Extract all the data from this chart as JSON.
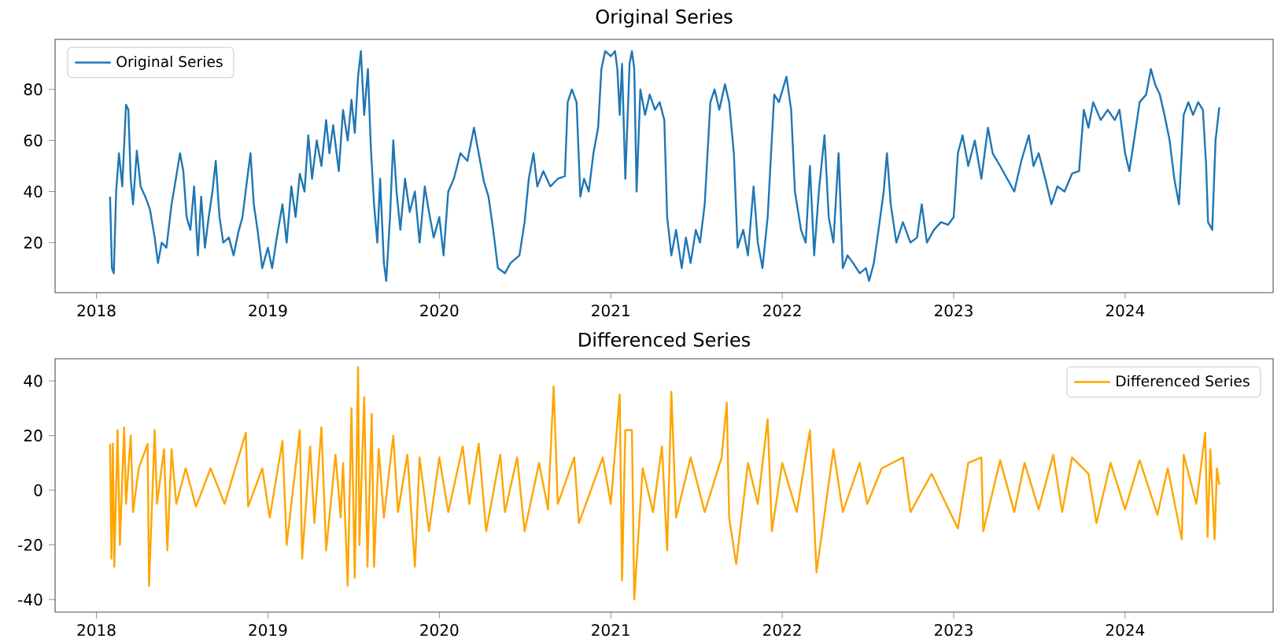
{
  "chart_data": [
    {
      "type": "line",
      "title": "Original Series",
      "legend": "top left",
      "x": [
        "2018-01-30",
        "2018-02-03",
        "2018-02-07",
        "2018-02-12",
        "2018-02-18",
        "2018-02-25",
        "2018-03-05",
        "2018-03-10",
        "2018-03-15",
        "2018-03-20",
        "2018-03-28",
        "2018-04-05",
        "2018-04-15",
        "2018-04-25",
        "2018-05-05",
        "2018-05-12",
        "2018-05-20",
        "2018-05-30",
        "2018-06-10",
        "2018-06-20",
        "2018-06-28",
        "2018-07-05",
        "2018-07-12",
        "2018-07-20",
        "2018-07-28",
        "2018-08-05",
        "2018-08-12",
        "2018-08-20",
        "2018-08-28",
        "2018-09-05",
        "2018-09-12",
        "2018-09-20",
        "2018-09-28",
        "2018-10-10",
        "2018-10-20",
        "2018-10-30",
        "2018-11-08",
        "2018-11-18",
        "2018-11-25",
        "2018-12-02",
        "2018-12-10",
        "2018-12-20",
        "2019-01-01",
        "2019-01-10",
        "2019-01-20",
        "2019-02-01",
        "2019-02-10",
        "2019-02-20",
        "2019-03-01",
        "2019-03-10",
        "2019-03-20",
        "2019-03-28",
        "2019-04-05",
        "2019-04-15",
        "2019-04-25",
        "2019-05-05",
        "2019-05-12",
        "2019-05-20",
        "2019-06-01",
        "2019-06-10",
        "2019-06-20",
        "2019-06-28",
        "2019-07-05",
        "2019-07-12",
        "2019-07-18",
        "2019-07-25",
        "2019-08-02",
        "2019-08-08",
        "2019-08-15",
        "2019-08-22",
        "2019-08-28",
        "2019-09-05",
        "2019-09-10",
        "2019-09-18",
        "2019-09-25",
        "2019-10-02",
        "2019-10-10",
        "2019-10-20",
        "2019-10-30",
        "2019-11-10",
        "2019-11-20",
        "2019-12-01",
        "2019-12-10",
        "2019-12-20",
        "2020-01-01",
        "2020-01-10",
        "2020-01-20",
        "2020-02-01",
        "2020-02-15",
        "2020-03-01",
        "2020-03-15",
        "2020-03-25",
        "2020-04-05",
        "2020-04-15",
        "2020-04-25",
        "2020-05-05",
        "2020-05-20",
        "2020-06-01",
        "2020-06-20",
        "2020-07-01",
        "2020-07-10",
        "2020-07-20",
        "2020-07-28",
        "2020-08-10",
        "2020-08-25",
        "2020-09-10",
        "2020-09-25",
        "2020-10-01",
        "2020-10-10",
        "2020-10-20",
        "2020-10-28",
        "2020-11-05",
        "2020-11-15",
        "2020-11-25",
        "2020-12-05",
        "2020-12-12",
        "2020-12-20",
        "2021-01-01",
        "2021-01-10",
        "2021-01-15",
        "2021-01-20",
        "2021-01-25",
        "2021-02-01",
        "2021-02-10",
        "2021-02-15",
        "2021-02-20",
        "2021-02-25",
        "2021-03-05",
        "2021-03-15",
        "2021-03-25",
        "2021-04-05",
        "2021-04-15",
        "2021-04-25",
        "2021-05-01",
        "2021-05-10",
        "2021-05-20",
        "2021-06-01",
        "2021-06-10",
        "2021-06-20",
        "2021-07-01",
        "2021-07-10",
        "2021-07-20",
        "2021-08-01",
        "2021-08-10",
        "2021-08-20",
        "2021-09-01",
        "2021-09-10",
        "2021-09-20",
        "2021-09-28",
        "2021-10-10",
        "2021-10-20",
        "2021-11-01",
        "2021-11-10",
        "2021-11-20",
        "2021-12-01",
        "2021-12-15",
        "2021-12-25",
        "2022-01-10",
        "2022-01-20",
        "2022-01-28",
        "2022-02-10",
        "2022-02-20",
        "2022-03-01",
        "2022-03-10",
        "2022-03-20",
        "2022-04-01",
        "2022-04-10",
        "2022-04-20",
        "2022-05-01",
        "2022-05-10",
        "2022-05-20",
        "2022-06-01",
        "2022-06-15",
        "2022-06-28",
        "2022-07-05",
        "2022-07-15",
        "2022-07-25",
        "2022-08-05",
        "2022-08-12",
        "2022-08-20",
        "2022-09-01",
        "2022-09-15",
        "2022-10-01",
        "2022-10-15",
        "2022-10-25",
        "2022-11-05",
        "2022-11-20",
        "2022-12-05",
        "2022-12-20",
        "2023-01-01",
        "2023-01-10",
        "2023-01-20",
        "2023-02-01",
        "2023-02-15",
        "2023-03-01",
        "2023-03-15",
        "2023-03-25",
        "2023-04-10",
        "2023-04-25",
        "2023-05-10",
        "2023-05-25",
        "2023-06-10",
        "2023-06-20",
        "2023-07-01",
        "2023-07-15",
        "2023-07-28",
        "2023-08-10",
        "2023-08-25",
        "2023-09-10",
        "2023-09-25",
        "2023-10-05",
        "2023-10-15",
        "2023-10-25",
        "2023-11-10",
        "2023-11-25",
        "2023-12-10",
        "2023-12-20",
        "2024-01-01",
        "2024-01-10",
        "2024-01-20",
        "2024-02-01",
        "2024-02-15",
        "2024-02-25",
        "2024-03-05",
        "2024-03-15",
        "2024-03-25",
        "2024-04-05",
        "2024-04-15",
        "2024-04-25",
        "2024-05-05",
        "2024-05-15",
        "2024-05-25",
        "2024-06-05",
        "2024-06-15",
        "2024-06-22",
        "2024-06-26",
        "2024-07-05",
        "2024-07-12",
        "2024-07-20"
      ],
      "series": [
        {
          "name": "Original Series",
          "color": "#1f77b4",
          "values": [
            38,
            10,
            8,
            40,
            55,
            42,
            74,
            72,
            45,
            35,
            56,
            42,
            38,
            33,
            22,
            12,
            20,
            18,
            35,
            46,
            55,
            48,
            30,
            25,
            42,
            15,
            38,
            18,
            30,
            40,
            52,
            30,
            20,
            22,
            15,
            24,
            30,
            45,
            55,
            35,
            25,
            10,
            18,
            10,
            22,
            35,
            20,
            42,
            30,
            47,
            40,
            62,
            45,
            60,
            50,
            68,
            55,
            66,
            48,
            72,
            60,
            76,
            63,
            85,
            95,
            70,
            88,
            58,
            35,
            20,
            45,
            12,
            5,
            30,
            60,
            40,
            25,
            45,
            32,
            40,
            20,
            42,
            32,
            22,
            30,
            15,
            40,
            45,
            55,
            52,
            65,
            55,
            44,
            38,
            25,
            10,
            8,
            12,
            15,
            28,
            45,
            55,
            42,
            48,
            42,
            45,
            46,
            75,
            80,
            75,
            38,
            45,
            40,
            55,
            65,
            88,
            95,
            93,
            95,
            88,
            70,
            90,
            45,
            90,
            95,
            88,
            40,
            80,
            70,
            78,
            72,
            75,
            68,
            30,
            15,
            25,
            10,
            22,
            12,
            25,
            20,
            35,
            75,
            80,
            72,
            82,
            75,
            55,
            18,
            25,
            15,
            42,
            20,
            10,
            30,
            78,
            75,
            85,
            72,
            40,
            25,
            20,
            50,
            15,
            40,
            62,
            30,
            20,
            55,
            10,
            15,
            12,
            8,
            10,
            5,
            12,
            25,
            40,
            55,
            35,
            20,
            28,
            20,
            22,
            35,
            20,
            25,
            28,
            27,
            30,
            55,
            62,
            50,
            60,
            45,
            65,
            55,
            50,
            45,
            40,
            52,
            62,
            50,
            55,
            45,
            35,
            42,
            40,
            47,
            48,
            72,
            65,
            75,
            68,
            72,
            68,
            72,
            55,
            48,
            60,
            75,
            78,
            88,
            82,
            78,
            70,
            60,
            45,
            35,
            70,
            75,
            70,
            75,
            72,
            50,
            28,
            25,
            60,
            73
          ]
        }
      ],
      "xlim": [
        "2017-10-05",
        "2024-11-12"
      ],
      "xticks": [
        {
          "value": "2018-01-01",
          "label": "2018"
        },
        {
          "value": "2019-01-01",
          "label": "2019"
        },
        {
          "value": "2020-01-01",
          "label": "2020"
        },
        {
          "value": "2021-01-01",
          "label": "2021"
        },
        {
          "value": "2022-01-01",
          "label": "2022"
        },
        {
          "value": "2023-01-01",
          "label": "2023"
        },
        {
          "value": "2024-01-01",
          "label": "2024"
        }
      ],
      "ylim": [
        0.4,
        99.6
      ],
      "yticks": [
        20,
        40,
        60,
        80
      ]
    },
    {
      "type": "line",
      "title": "Differenced Series",
      "legend": "top right",
      "x": [
        "2018-01-30",
        "2018-02-02",
        "2018-02-05",
        "2018-02-08",
        "2018-02-15",
        "2018-02-20",
        "2018-03-01",
        "2018-03-05",
        "2018-03-15",
        "2018-03-20",
        "2018-04-01",
        "2018-04-20",
        "2018-04-23",
        "2018-05-05",
        "2018-05-10",
        "2018-05-25",
        "2018-06-01",
        "2018-06-10",
        "2018-06-20",
        "2018-07-10",
        "2018-08-01",
        "2018-09-01",
        "2018-10-01",
        "2018-11-15",
        "2018-11-20",
        "2018-12-20",
        "2019-01-05",
        "2019-02-01",
        "2019-02-10",
        "2019-03-10",
        "2019-03-15",
        "2019-04-01",
        "2019-04-10",
        "2019-04-25",
        "2019-05-05",
        "2019-05-25",
        "2019-06-05",
        "2019-06-10",
        "2019-06-20",
        "2019-06-28",
        "2019-07-05",
        "2019-07-12",
        "2019-07-15",
        "2019-07-25",
        "2019-08-01",
        "2019-08-10",
        "2019-08-15",
        "2019-08-25",
        "2019-09-05",
        "2019-09-25",
        "2019-10-05",
        "2019-10-25",
        "2019-11-10",
        "2019-11-20",
        "2019-12-10",
        "2020-01-01",
        "2020-01-20",
        "2020-02-20",
        "2020-03-05",
        "2020-03-25",
        "2020-04-10",
        "2020-05-10",
        "2020-05-20",
        "2020-06-15",
        "2020-07-01",
        "2020-08-01",
        "2020-08-20",
        "2020-09-01",
        "2020-09-10",
        "2020-10-15",
        "2020-10-25",
        "2020-12-15",
        "2021-01-01",
        "2021-01-20",
        "2021-01-25",
        "2021-02-01",
        "2021-02-15",
        "2021-02-20",
        "2021-03-10",
        "2021-04-01",
        "2021-04-20",
        "2021-05-01",
        "2021-05-10",
        "2021-05-20",
        "2021-06-20",
        "2021-07-20",
        "2021-08-25",
        "2021-09-05",
        "2021-09-10",
        "2021-09-25",
        "2021-10-20",
        "2021-11-10",
        "2021-12-01",
        "2021-12-10",
        "2022-01-01",
        "2022-02-01",
        "2022-03-01",
        "2022-03-15",
        "2022-04-20",
        "2022-05-10",
        "2022-06-15",
        "2022-07-01",
        "2022-08-01",
        "2022-09-15",
        "2022-10-01",
        "2022-11-15",
        "2023-01-10",
        "2023-02-01",
        "2023-03-01",
        "2023-03-05",
        "2023-04-10",
        "2023-05-10",
        "2023-06-01",
        "2023-07-01",
        "2023-08-01",
        "2023-08-20",
        "2023-09-10",
        "2023-10-15",
        "2023-11-01",
        "2023-12-01",
        "2024-01-01",
        "2024-02-01",
        "2024-03-10",
        "2024-04-01",
        "2024-05-01",
        "2024-05-05",
        "2024-06-01",
        "2024-06-20",
        "2024-06-25",
        "2024-07-01",
        "2024-07-10",
        "2024-07-15",
        "2024-07-20"
      ],
      "series": [
        {
          "name": "Differenced Series",
          "color": "#ffa500",
          "values": [
            17,
            -25,
            17,
            -28,
            22,
            -20,
            23,
            -5,
            20,
            -8,
            8,
            17,
            -35,
            22,
            -5,
            15,
            -22,
            15,
            -5,
            8,
            -6,
            8,
            -5,
            21,
            -6,
            8,
            -10,
            18,
            -20,
            22,
            -25,
            16,
            -12,
            23,
            -22,
            13,
            -10,
            10,
            -35,
            30,
            -32,
            45,
            -20,
            34,
            -28,
            28,
            -28,
            15,
            -10,
            20,
            -8,
            13,
            -28,
            12,
            -15,
            12,
            -8,
            16,
            -5,
            17,
            -15,
            13,
            -8,
            12,
            -15,
            10,
            -7,
            38,
            -5,
            12,
            -12,
            12,
            -5,
            35,
            -33,
            22,
            22,
            -40,
            8,
            -8,
            16,
            -22,
            36,
            -10,
            12,
            -8,
            12,
            32,
            -10,
            -27,
            10,
            -5,
            26,
            -15,
            10,
            -8,
            22,
            -30,
            15,
            -8,
            10,
            -5,
            8,
            12,
            -8,
            6,
            -14,
            10,
            12,
            -15,
            11,
            -8,
            10,
            -7,
            13,
            -8,
            12,
            6,
            -12,
            10,
            -7,
            11,
            -9,
            8,
            -18,
            13,
            -5,
            21,
            -17,
            15,
            -18,
            8,
            2
          ]
        }
      ],
      "xlim": [
        "2017-10-05",
        "2024-11-12"
      ],
      "xticks": [
        {
          "value": "2018-01-01",
          "label": "2018"
        },
        {
          "value": "2019-01-01",
          "label": "2019"
        },
        {
          "value": "2020-01-01",
          "label": "2020"
        },
        {
          "value": "2021-01-01",
          "label": "2021"
        },
        {
          "value": "2022-01-01",
          "label": "2022"
        },
        {
          "value": "2023-01-01",
          "label": "2023"
        },
        {
          "value": "2024-01-01",
          "label": "2024"
        }
      ],
      "ylim": [
        -44.6,
        48.1
      ],
      "yticks": [
        -40,
        -20,
        0,
        20,
        40
      ]
    }
  ]
}
